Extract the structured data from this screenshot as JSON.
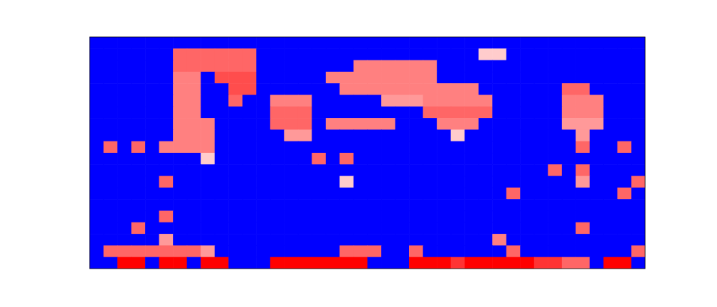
{
  "chart_data": {
    "type": "heatmap",
    "tick_labels": false,
    "color_range": [
      0,
      1
    ],
    "cells": [
      [
        0,
        0,
        0,
        0,
        0,
        0,
        0,
        0,
        0,
        0,
        0,
        0,
        0,
        0,
        0,
        0,
        0,
        0,
        0,
        0,
        0,
        0,
        0,
        0,
        0,
        0,
        0,
        0,
        0,
        0,
        0,
        0,
        0,
        0,
        0,
        0,
        0,
        0,
        0,
        0
      ],
      [
        0,
        0,
        0,
        0,
        0,
        0,
        0.8,
        0.8,
        0.8,
        0.8,
        0.8,
        0.8,
        0,
        0,
        0,
        0,
        0,
        0,
        0,
        0,
        0,
        0,
        0,
        0,
        0,
        0,
        0,
        0,
        0.6,
        0.6,
        0,
        0,
        0,
        0,
        0,
        0,
        0,
        0,
        0,
        0
      ],
      [
        0,
        0,
        0,
        0,
        0,
        0,
        0.8,
        0.8,
        0.8,
        0.8,
        0.8,
        0.8,
        0,
        0,
        0,
        0,
        0,
        0,
        0,
        0.75,
        0.75,
        0.75,
        0.75,
        0.75,
        0.75,
        0,
        0,
        0,
        0,
        0,
        0,
        0,
        0,
        0,
        0,
        0,
        0,
        0,
        0,
        0
      ],
      [
        0,
        0,
        0,
        0,
        0,
        0,
        0.75,
        0.75,
        0,
        0.85,
        0.85,
        0.85,
        0,
        0,
        0,
        0,
        0,
        0.75,
        0.75,
        0.75,
        0.75,
        0.75,
        0.75,
        0.75,
        0.75,
        0,
        0,
        0,
        0,
        0,
        0,
        0,
        0,
        0,
        0,
        0,
        0,
        0,
        0,
        0
      ],
      [
        0,
        0,
        0,
        0,
        0,
        0,
        0.75,
        0.75,
        0,
        0,
        0.85,
        0.85,
        0,
        0,
        0,
        0,
        0,
        0,
        0.75,
        0.75,
        0.75,
        0.75,
        0.75,
        0.75,
        0.75,
        0.75,
        0.75,
        0.75,
        0,
        0,
        0,
        0,
        0,
        0,
        0.8,
        0.8,
        0,
        0,
        0,
        0
      ],
      [
        0,
        0,
        0,
        0,
        0,
        0,
        0.75,
        0.75,
        0,
        0,
        0.8,
        0,
        0,
        0.75,
        0.75,
        0.75,
        0,
        0,
        0,
        0,
        0,
        0.7,
        0.7,
        0.7,
        0.75,
        0.75,
        0.75,
        0.75,
        0.75,
        0,
        0,
        0,
        0,
        0,
        0.75,
        0.75,
        0.75,
        0,
        0,
        0
      ],
      [
        0,
        0,
        0,
        0,
        0,
        0,
        0.75,
        0.75,
        0,
        0,
        0,
        0,
        0,
        0.8,
        0.8,
        0.8,
        0,
        0,
        0,
        0,
        0,
        0,
        0,
        0,
        0.8,
        0.8,
        0.8,
        0.8,
        0.8,
        0,
        0,
        0,
        0,
        0,
        0.75,
        0.75,
        0.75,
        0,
        0,
        0
      ],
      [
        0,
        0,
        0,
        0,
        0,
        0,
        0.75,
        0.75,
        0.75,
        0,
        0,
        0,
        0,
        0.8,
        0.8,
        0.8,
        0,
        0.75,
        0.75,
        0.75,
        0.75,
        0.75,
        0,
        0,
        0,
        0.75,
        0.75,
        0.75,
        0,
        0,
        0,
        0,
        0,
        0,
        0.7,
        0.7,
        0.7,
        0,
        0,
        0
      ],
      [
        0,
        0,
        0,
        0,
        0,
        0,
        0.75,
        0.75,
        0.75,
        0,
        0,
        0,
        0,
        0,
        0.7,
        0.7,
        0,
        0,
        0,
        0,
        0,
        0,
        0,
        0,
        0,
        0,
        0.6,
        0,
        0,
        0,
        0,
        0,
        0,
        0,
        0,
        0.7,
        0,
        0,
        0,
        0
      ],
      [
        0,
        0.8,
        0,
        0.8,
        0,
        0.75,
        0.75,
        0.75,
        0.75,
        0,
        0,
        0,
        0,
        0,
        0,
        0,
        0,
        0,
        0,
        0,
        0,
        0,
        0,
        0,
        0,
        0,
        0,
        0,
        0,
        0,
        0,
        0,
        0,
        0,
        0,
        0.8,
        0,
        0,
        0.8,
        0
      ],
      [
        0,
        0,
        0,
        0,
        0,
        0,
        0,
        0,
        0.6,
        0,
        0,
        0,
        0,
        0,
        0,
        0,
        0.8,
        0,
        0.8,
        0,
        0,
        0,
        0,
        0,
        0,
        0,
        0,
        0,
        0,
        0,
        0,
        0,
        0,
        0,
        0,
        0,
        0,
        0,
        0,
        0
      ],
      [
        0,
        0,
        0,
        0,
        0,
        0,
        0,
        0,
        0,
        0,
        0,
        0,
        0,
        0,
        0,
        0,
        0,
        0,
        0,
        0,
        0,
        0,
        0,
        0,
        0,
        0,
        0,
        0,
        0,
        0,
        0,
        0,
        0,
        0.8,
        0,
        0.8,
        0,
        0,
        0,
        0
      ],
      [
        0,
        0,
        0,
        0,
        0,
        0.8,
        0,
        0,
        0,
        0,
        0,
        0,
        0,
        0,
        0,
        0,
        0,
        0,
        0.6,
        0,
        0,
        0,
        0,
        0,
        0,
        0,
        0,
        0,
        0,
        0,
        0,
        0,
        0,
        0,
        0,
        0.7,
        0,
        0,
        0,
        0.8
      ],
      [
        0,
        0,
        0,
        0,
        0,
        0,
        0,
        0,
        0,
        0,
        0,
        0,
        0,
        0,
        0,
        0,
        0,
        0,
        0,
        0,
        0,
        0,
        0,
        0,
        0,
        0,
        0,
        0,
        0,
        0,
        0.8,
        0,
        0,
        0,
        0,
        0,
        0,
        0,
        0.8,
        0
      ],
      [
        0,
        0,
        0,
        0,
        0,
        0,
        0,
        0,
        0,
        0,
        0,
        0,
        0,
        0,
        0,
        0,
        0,
        0,
        0,
        0,
        0,
        0,
        0,
        0,
        0,
        0,
        0,
        0,
        0,
        0,
        0,
        0,
        0,
        0,
        0,
        0,
        0,
        0,
        0,
        0
      ],
      [
        0,
        0,
        0,
        0,
        0,
        0.8,
        0,
        0,
        0,
        0,
        0,
        0,
        0,
        0,
        0,
        0,
        0,
        0,
        0,
        0,
        0,
        0,
        0,
        0,
        0,
        0,
        0,
        0,
        0,
        0,
        0,
        0,
        0,
        0,
        0,
        0,
        0,
        0,
        0,
        0
      ],
      [
        0,
        0,
        0,
        0.8,
        0,
        0,
        0,
        0,
        0,
        0,
        0,
        0,
        0,
        0,
        0,
        0,
        0,
        0,
        0,
        0,
        0,
        0,
        0,
        0,
        0,
        0,
        0,
        0,
        0,
        0,
        0,
        0,
        0,
        0,
        0,
        0.8,
        0,
        0,
        0,
        0
      ],
      [
        0,
        0,
        0,
        0,
        0,
        0.7,
        0,
        0,
        0,
        0,
        0,
        0,
        0,
        0,
        0,
        0,
        0,
        0,
        0,
        0,
        0,
        0,
        0,
        0,
        0,
        0,
        0,
        0,
        0,
        0.75,
        0,
        0,
        0,
        0,
        0,
        0,
        0,
        0,
        0,
        0
      ],
      [
        0,
        0.8,
        0.8,
        0.8,
        0.8,
        0.8,
        0.8,
        0.8,
        0.7,
        0,
        0,
        0,
        0,
        0,
        0,
        0,
        0,
        0,
        0.8,
        0.8,
        0.8,
        0,
        0,
        0.8,
        0,
        0,
        0,
        0,
        0,
        0,
        0.8,
        0,
        0,
        0,
        0,
        0,
        0,
        0,
        0,
        0.8
      ],
      [
        0,
        0,
        1,
        1,
        0,
        1,
        1,
        0,
        1,
        1,
        0,
        0,
        0,
        1,
        1,
        1,
        1,
        1,
        1,
        1,
        0,
        0,
        0,
        1,
        1,
        1,
        0.9,
        1,
        1,
        1,
        1,
        1,
        0.9,
        0.9,
        0.8,
        0.8,
        0,
        1,
        1,
        0
      ]
    ]
  }
}
